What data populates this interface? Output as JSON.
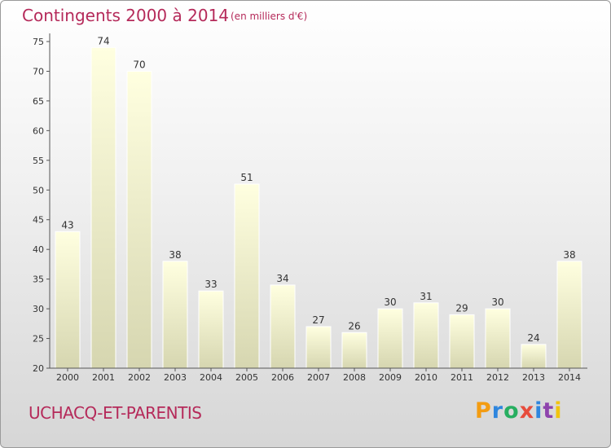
{
  "header": {
    "title": "Contingents 2000 à 2014",
    "subtitle": "(en milliers d'€)"
  },
  "footer": {
    "commune": "UCHACQ-ET-PARENTIS",
    "logo": {
      "text": "Proxiti",
      "colors": [
        "#f39c12",
        "#2e86de",
        "#27ae60",
        "#e74c3c",
        "#2e86de",
        "#8e44ad",
        "#f1c40f"
      ]
    }
  },
  "colors": {
    "bar_top": "#ffffe0",
    "bar_bottom": "#d6d6b0",
    "axis": "#555555",
    "text_accent": "#b52a5a"
  },
  "chart_data": {
    "type": "bar",
    "title": "Contingents 2000 à 2014",
    "subtitle": "(en milliers d'€)",
    "categories": [
      "2000",
      "2001",
      "2002",
      "2003",
      "2004",
      "2005",
      "2006",
      "2007",
      "2008",
      "2009",
      "2010",
      "2011",
      "2012",
      "2013",
      "2014"
    ],
    "values": [
      43,
      74,
      70,
      38,
      33,
      51,
      34,
      27,
      26,
      30,
      31,
      29,
      30,
      24,
      38
    ],
    "ylim": [
      20,
      75
    ],
    "yticks": [
      20,
      25,
      30,
      35,
      40,
      45,
      50,
      55,
      60,
      65,
      70,
      75
    ],
    "grid": false,
    "data_labels": true
  }
}
